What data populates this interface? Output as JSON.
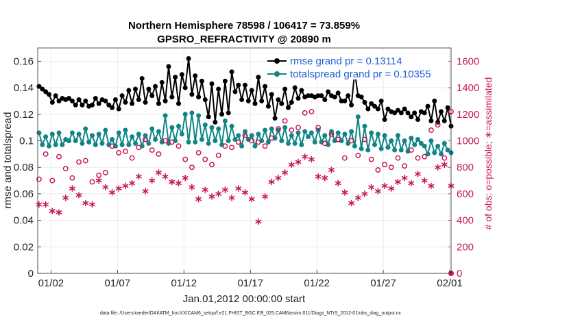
{
  "chart_data": {
    "type": "line",
    "title": "Northern Hemisphere 78598 / 106417 = 73.859%",
    "subtitle": "GPSRO_REFRACTIVITY @ 20890 m",
    "xlabel": "Jan.01,2012 00:00:00 start",
    "ylabel": "rmse and totalspread",
    "ylabel_right": "# of obs: o=possible; ∗=assimilated",
    "footnote": "data file: /Users/raeder/DAI/ATM_forcXX/CAM6_setup/f.e21.FHIST_BGC.f09_025.CAM6assim.011/Diags_NTrS_2012-01/obs_diag_output.nc",
    "x_ticks": [
      "01/02",
      "01/07",
      "01/12",
      "01/17",
      "01/22",
      "01/27",
      "02/01"
    ],
    "x_range": [
      0.5,
      31.6
    ],
    "y_ticks": [
      "0",
      "0.02",
      "0.04",
      "0.06",
      "0.08",
      "0.1",
      "0.12",
      "0.14",
      "0.16"
    ],
    "ylim": [
      0,
      0.17
    ],
    "y2_ticks": [
      "0",
      "200",
      "400",
      "600",
      "800",
      "1000",
      "1200",
      "1400",
      "1600"
    ],
    "y2lim": [
      0,
      1700
    ],
    "grid": true,
    "legend_position": "top-right",
    "series": [
      {
        "name": "rmse grand pr = 0.13114",
        "axis": "left",
        "color": "#000000",
        "marker": "filled-circle",
        "x": [
          0.6,
          0.85,
          1.1,
          1.35,
          1.6,
          1.85,
          2.1,
          2.35,
          2.6,
          2.85,
          3.1,
          3.35,
          3.6,
          3.85,
          4.1,
          4.35,
          4.6,
          4.85,
          5.1,
          5.35,
          5.6,
          5.85,
          6.1,
          6.35,
          6.6,
          6.85,
          7.1,
          7.35,
          7.6,
          7.85,
          8.1,
          8.35,
          8.6,
          8.85,
          9.1,
          9.35,
          9.6,
          9.85,
          10.1,
          10.35,
          10.6,
          10.85,
          11.1,
          11.35,
          11.6,
          11.85,
          12.1,
          12.35,
          12.6,
          12.85,
          13.1,
          13.35,
          13.6,
          13.85,
          14.1,
          14.35,
          14.6,
          14.85,
          15.1,
          15.35,
          15.6,
          15.85,
          16.1,
          16.35,
          16.6,
          16.85,
          17.1,
          17.35,
          17.6,
          17.85,
          18.1,
          18.35,
          18.6,
          18.85,
          19.1,
          19.35,
          19.6,
          19.85,
          20.1,
          20.35,
          20.6,
          20.85,
          21.1,
          21.35,
          21.6,
          21.85,
          22.1,
          22.35,
          22.6,
          22.85,
          23.1,
          23.35,
          23.6,
          23.85,
          24.1,
          24.35,
          24.6,
          24.85,
          25.1,
          25.35,
          25.6,
          25.85,
          26.1,
          26.35,
          26.6,
          26.85,
          27.1,
          27.35,
          27.6,
          27.85,
          28.1,
          28.35,
          28.6,
          28.85,
          29.1,
          29.35,
          29.6,
          29.85,
          30.1,
          30.35,
          30.6,
          30.85,
          31.1,
          31.35,
          31.6
        ],
        "y": [
          0.141,
          0.139,
          0.137,
          0.135,
          0.129,
          0.134,
          0.13,
          0.132,
          0.131,
          0.132,
          0.13,
          0.127,
          0.131,
          0.127,
          0.13,
          0.126,
          0.127,
          0.132,
          0.128,
          0.131,
          0.13,
          0.127,
          0.125,
          0.131,
          0.124,
          0.134,
          0.129,
          0.138,
          0.128,
          0.139,
          0.131,
          0.147,
          0.129,
          0.139,
          0.134,
          0.141,
          0.128,
          0.144,
          0.13,
          0.156,
          0.133,
          0.148,
          0.128,
          0.15,
          0.14,
          0.162,
          0.135,
          0.149,
          0.133,
          0.145,
          0.131,
          0.118,
          0.143,
          0.114,
          0.139,
          0.12,
          0.145,
          0.121,
          0.152,
          0.137,
          0.142,
          0.131,
          0.142,
          0.13,
          0.138,
          0.128,
          0.148,
          0.13,
          0.141,
          0.126,
          0.135,
          0.117,
          0.131,
          0.128,
          0.139,
          0.125,
          0.129,
          0.14,
          0.132,
          0.138,
          0.133,
          0.134,
          0.134,
          0.133,
          0.134,
          0.134,
          0.131,
          0.137,
          0.134,
          0.133,
          0.136,
          0.13,
          0.13,
          0.134,
          0.127,
          0.152,
          0.134,
          0.133,
          0.129,
          0.124,
          0.128,
          0.126,
          0.124,
          0.13,
          0.116,
          0.124,
          0.122,
          0.121,
          0.123,
          0.121,
          0.124,
          0.121,
          0.118,
          0.121,
          0.116,
          0.122,
          0.121,
          0.126,
          0.115,
          0.13,
          0.114,
          0.122,
          0.115,
          0.125,
          0.111
        ]
      },
      {
        "name": "totalspread grand pr = 0.10355",
        "axis": "left",
        "color": "#0f8585",
        "marker": "filled-circle",
        "x": [
          0.6,
          0.85,
          1.1,
          1.35,
          1.6,
          1.85,
          2.1,
          2.35,
          2.6,
          2.85,
          3.1,
          3.35,
          3.6,
          3.85,
          4.1,
          4.35,
          4.6,
          4.85,
          5.1,
          5.35,
          5.6,
          5.85,
          6.1,
          6.35,
          6.6,
          6.85,
          7.1,
          7.35,
          7.6,
          7.85,
          8.1,
          8.35,
          8.6,
          8.85,
          9.1,
          9.35,
          9.6,
          9.85,
          10.1,
          10.35,
          10.6,
          10.85,
          11.1,
          11.35,
          11.6,
          11.85,
          12.1,
          12.35,
          12.6,
          12.85,
          13.1,
          13.35,
          13.6,
          13.85,
          14.1,
          14.35,
          14.6,
          14.85,
          15.1,
          15.35,
          15.6,
          15.85,
          16.1,
          16.35,
          16.6,
          16.85,
          17.1,
          17.35,
          17.6,
          17.85,
          18.1,
          18.35,
          18.6,
          18.85,
          19.1,
          19.35,
          19.6,
          19.85,
          20.1,
          20.35,
          20.6,
          20.85,
          21.1,
          21.35,
          21.6,
          21.85,
          22.1,
          22.35,
          22.6,
          22.85,
          23.1,
          23.35,
          23.6,
          23.85,
          24.1,
          24.35,
          24.6,
          24.85,
          25.1,
          25.35,
          25.6,
          25.85,
          26.1,
          26.35,
          26.6,
          26.85,
          27.1,
          27.35,
          27.6,
          27.85,
          28.1,
          28.35,
          28.6,
          28.85,
          29.1,
          29.35,
          29.6,
          29.85,
          30.1,
          30.35,
          30.6,
          30.85,
          31.1,
          31.35,
          31.6
        ],
        "y": [
          0.106,
          0.097,
          0.103,
          0.096,
          0.105,
          0.097,
          0.106,
          0.097,
          0.101,
          0.1,
          0.106,
          0.1,
          0.105,
          0.098,
          0.109,
          0.099,
          0.104,
          0.097,
          0.105,
          0.098,
          0.108,
          0.097,
          0.101,
          0.096,
          0.106,
          0.097,
          0.108,
          0.097,
          0.103,
          0.098,
          0.105,
          0.096,
          0.104,
          0.098,
          0.109,
          0.101,
          0.107,
          0.099,
          0.119,
          0.098,
          0.11,
          0.1,
          0.111,
          0.105,
          0.12,
          0.099,
          0.121,
          0.099,
          0.119,
          0.101,
          0.112,
          0.098,
          0.11,
          0.1,
          0.109,
          0.097,
          0.115,
          0.1,
          0.111,
          0.101,
          0.104,
          0.096,
          0.107,
          0.101,
          0.104,
          0.096,
          0.105,
          0.1,
          0.108,
          0.099,
          0.109,
          0.102,
          0.108,
          0.1,
          0.11,
          0.098,
          0.104,
          0.098,
          0.106,
          0.097,
          0.107,
          0.103,
          0.106,
          0.099,
          0.108,
          0.099,
          0.104,
          0.097,
          0.107,
          0.1,
          0.106,
          0.1,
          0.105,
          0.098,
          0.107,
          0.096,
          0.118,
          0.094,
          0.111,
          0.093,
          0.106,
          0.097,
          0.105,
          0.094,
          0.104,
          0.095,
          0.1,
          0.093,
          0.104,
          0.093,
          0.1,
          0.092,
          0.102,
          0.097,
          0.101,
          0.098,
          0.096,
          0.09,
          0.1,
          0.091,
          0.096,
          0.09,
          0.098,
          0.093,
          0.091
        ]
      },
      {
        "name": "possible obs",
        "axis": "right",
        "color": "#c8175a",
        "marker": "open-circle",
        "x": [
          0.6,
          1.1,
          1.6,
          2.1,
          2.6,
          3.1,
          3.6,
          4.1,
          4.6,
          5.1,
          5.6,
          6.1,
          6.6,
          7.1,
          7.6,
          8.1,
          8.6,
          9.1,
          9.6,
          10.1,
          10.6,
          11.1,
          11.6,
          12.1,
          12.6,
          13.1,
          13.6,
          14.1,
          14.6,
          15.1,
          15.6,
          16.1,
          16.6,
          17.1,
          17.6,
          18.1,
          18.6,
          19.1,
          19.6,
          20.1,
          20.6,
          21.1,
          21.6,
          22.1,
          22.6,
          23.1,
          23.6,
          24.1,
          24.6,
          25.1,
          25.6,
          26.1,
          26.6,
          27.1,
          27.6,
          28.1,
          28.6,
          29.1,
          29.6,
          30.1,
          30.6,
          31.1,
          31.6
        ],
        "y": [
          710,
          900,
          700,
          880,
          790,
          720,
          840,
          850,
          690,
          740,
          760,
          960,
          910,
          920,
          870,
          950,
          1010,
          930,
          900,
          1000,
          990,
          960,
          860,
          800,
          910,
          860,
          820,
          890,
          960,
          950,
          990,
          1040,
          1000,
          990,
          960,
          1020,
          1090,
          1150,
          1080,
          1100,
          1210,
          1220,
          1100,
          980,
          1050,
          1010,
          870,
          1000,
          890,
          1010,
          860,
          780,
          820,
          800,
          870,
          810,
          930,
          870,
          880,
          1080,
          1120,
          870,
          1220
        ]
      },
      {
        "name": "assimilated obs",
        "axis": "right",
        "color": "#c8175a",
        "marker": "asterisk",
        "x": [
          0.6,
          1.1,
          1.6,
          2.1,
          2.6,
          3.1,
          3.6,
          4.1,
          4.6,
          5.1,
          5.6,
          6.1,
          6.6,
          7.1,
          7.6,
          8.1,
          8.6,
          9.1,
          9.6,
          10.1,
          10.6,
          11.1,
          11.6,
          12.1,
          12.6,
          13.1,
          13.6,
          14.1,
          14.6,
          15.1,
          15.6,
          16.1,
          16.6,
          17.1,
          17.6,
          18.1,
          18.6,
          19.1,
          19.6,
          20.1,
          20.6,
          21.1,
          21.6,
          22.1,
          22.6,
          23.1,
          23.6,
          24.1,
          24.6,
          25.1,
          25.6,
          26.1,
          26.6,
          27.1,
          27.6,
          28.1,
          28.6,
          29.1,
          29.6,
          30.1,
          30.6,
          31.1,
          31.6
        ],
        "y": [
          520,
          520,
          470,
          460,
          570,
          640,
          590,
          530,
          520,
          700,
          650,
          610,
          640,
          660,
          680,
          730,
          620,
          700,
          760,
          730,
          690,
          680,
          720,
          650,
          560,
          630,
          580,
          600,
          630,
          570,
          640,
          610,
          560,
          390,
          580,
          690,
          720,
          760,
          820,
          840,
          880,
          860,
          730,
          720,
          780,
          680,
          610,
          530,
          570,
          600,
          650,
          620,
          660,
          640,
          690,
          720,
          680,
          750,
          700,
          660,
          800,
          820,
          660
        ]
      }
    ]
  }
}
